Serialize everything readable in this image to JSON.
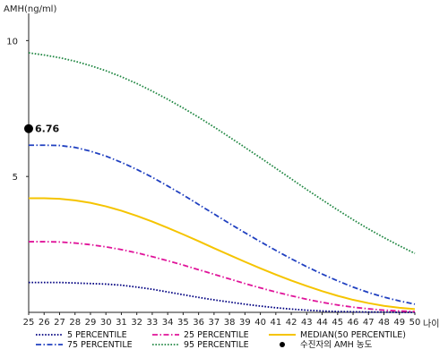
{
  "chart_data": {
    "type": "line",
    "ylabel": "AMH(ng/ml)",
    "xlabel": "나이",
    "x": [
      25,
      26,
      27,
      28,
      29,
      30,
      31,
      32,
      33,
      34,
      35,
      36,
      37,
      38,
      39,
      40,
      41,
      42,
      43,
      44,
      45,
      46,
      47,
      48,
      49,
      50
    ],
    "xlim": [
      25,
      50
    ],
    "ylim": [
      0,
      11
    ],
    "yticks": [
      5,
      10
    ],
    "grid": false,
    "series": [
      {
        "name": "5 PERCENTILE",
        "color": "#000080",
        "style": "dotted",
        "values": [
          1.1,
          1.1,
          1.1,
          1.08,
          1.06,
          1.04,
          1.0,
          0.93,
          0.85,
          0.75,
          0.65,
          0.55,
          0.46,
          0.38,
          0.3,
          0.23,
          0.17,
          0.12,
          0.08,
          0.05,
          0.03,
          0.02,
          0.01,
          0.01,
          0.0,
          0.0
        ]
      },
      {
        "name": "25 PERCENTILE",
        "color": "#e0149a",
        "style": "dashdot",
        "values": [
          2.6,
          2.6,
          2.59,
          2.55,
          2.49,
          2.41,
          2.31,
          2.19,
          2.05,
          1.9,
          1.74,
          1.57,
          1.4,
          1.23,
          1.06,
          0.9,
          0.75,
          0.61,
          0.48,
          0.37,
          0.27,
          0.19,
          0.13,
          0.08,
          0.05,
          0.03
        ]
      },
      {
        "name": "MEDIAN(50 PERCENTILE)",
        "color": "#f5c400",
        "style": "solid",
        "values": [
          4.2,
          4.2,
          4.18,
          4.12,
          4.03,
          3.9,
          3.74,
          3.55,
          3.34,
          3.11,
          2.87,
          2.62,
          2.36,
          2.11,
          1.86,
          1.62,
          1.39,
          1.17,
          0.97,
          0.78,
          0.61,
          0.46,
          0.34,
          0.24,
          0.17,
          0.12
        ]
      },
      {
        "name": "75 PERCENTILE",
        "color": "#2040c0",
        "style": "dashdot",
        "values": [
          6.15,
          6.15,
          6.14,
          6.07,
          5.93,
          5.75,
          5.52,
          5.26,
          4.97,
          4.65,
          4.32,
          3.97,
          3.62,
          3.27,
          2.93,
          2.6,
          2.28,
          1.97,
          1.68,
          1.41,
          1.16,
          0.93,
          0.73,
          0.56,
          0.42,
          0.3
        ]
      },
      {
        "name": "95 PERCENTILE",
        "color": "#228844",
        "style": "dotted",
        "values": [
          9.55,
          9.47,
          9.37,
          9.24,
          9.08,
          8.89,
          8.67,
          8.42,
          8.14,
          7.84,
          7.52,
          7.18,
          6.82,
          6.45,
          6.07,
          5.69,
          5.3,
          4.91,
          4.52,
          4.14,
          3.77,
          3.41,
          3.07,
          2.75,
          2.45,
          2.17
        ]
      }
    ],
    "marker": {
      "name": "수진자의 AMH 농도",
      "x": 25,
      "y": 6.76,
      "label": "6.76",
      "color": "#000000"
    },
    "legend": {
      "placement": "bottom",
      "items": [
        {
          "label": "5 PERCENTILE",
          "series": 0
        },
        {
          "label": "25 PERCENTILE",
          "series": 1
        },
        {
          "label": "MEDIAN(50 PERCENTILE)",
          "series": 2
        },
        {
          "label": "75 PERCENTILE",
          "series": 3
        },
        {
          "label": "95 PERCENTILE",
          "series": 4
        },
        {
          "label": "수진자의 AMH 농도",
          "marker": true
        }
      ]
    }
  }
}
